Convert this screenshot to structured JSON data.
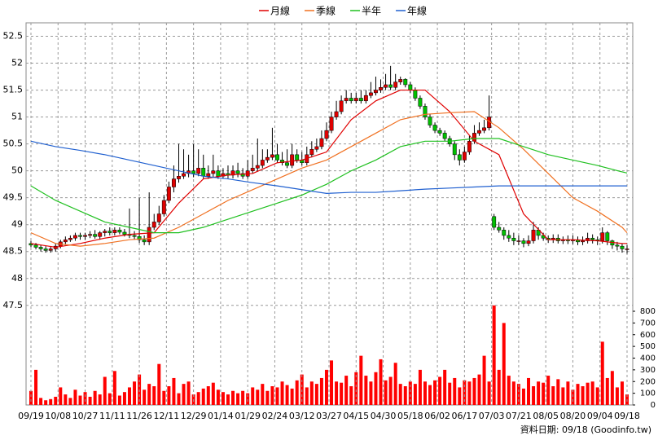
{
  "chart_data": [
    {
      "type": "candlestick",
      "source": "資料日期: 09/18 (Goodinfo.tw)",
      "xlim": [
        0,
        121
      ],
      "xticks": [
        {
          "value": 0,
          "label": "09/19"
        },
        {
          "value": 5.5,
          "label": "10/08"
        },
        {
          "value": 11,
          "label": "10/27"
        },
        {
          "value": 16.5,
          "label": "11/11"
        },
        {
          "value": 22,
          "label": "11/26"
        },
        {
          "value": 27.5,
          "label": "12/11"
        },
        {
          "value": 33,
          "label": "12/29"
        },
        {
          "value": 38.5,
          "label": "01/14"
        },
        {
          "value": 44,
          "label": "01/29"
        },
        {
          "value": 49.5,
          "label": "02/24"
        },
        {
          "value": 55,
          "label": "03/12"
        },
        {
          "value": 60.5,
          "label": "03/27"
        },
        {
          "value": 66,
          "label": "04/15"
        },
        {
          "value": 71.5,
          "label": "04/30"
        },
        {
          "value": 77,
          "label": "05/18"
        },
        {
          "value": 82.5,
          "label": "06/02"
        },
        {
          "value": 88,
          "label": "06/17"
        },
        {
          "value": 93.5,
          "label": "07/03"
        },
        {
          "value": 99,
          "label": "07/21"
        },
        {
          "value": 104.5,
          "label": "08/05"
        },
        {
          "value": 110,
          "label": "08/20"
        },
        {
          "value": 115.5,
          "label": "09/04"
        },
        {
          "value": 121,
          "label": "09/18"
        }
      ],
      "ylim": [
        45.65,
        52.75
      ],
      "yticks": [
        47.5,
        48,
        48.5,
        49,
        49.5,
        50,
        50.5,
        51,
        51.5,
        52,
        52.5
      ],
      "grid": true,
      "up_color": "#e00000",
      "down_color": "#00c000",
      "open": [
        48.65,
        48.62,
        48.58,
        48.55,
        48.52,
        48.55,
        48.6,
        48.68,
        48.72,
        48.75,
        48.8,
        48.78,
        48.8,
        48.82,
        48.78,
        48.85,
        48.88,
        48.85,
        48.9,
        48.86,
        48.82,
        48.8,
        48.78,
        48.72,
        48.68,
        48.95,
        49.05,
        49.2,
        49.45,
        49.7,
        49.85,
        49.9,
        49.95,
        50.0,
        49.95,
        50.05,
        49.9,
        49.95,
        50.0,
        49.9,
        49.95,
        49.92,
        50.0,
        49.95,
        49.9,
        50.0,
        50.05,
        50.1,
        50.2,
        50.25,
        50.3,
        50.2,
        50.15,
        50.1,
        50.3,
        50.2,
        50.15,
        50.3,
        50.4,
        50.45,
        50.6,
        50.75,
        51.0,
        51.1,
        51.3,
        51.35,
        51.3,
        51.35,
        51.3,
        51.4,
        51.45,
        51.5,
        51.55,
        51.6,
        51.55,
        51.65,
        51.7,
        51.6,
        51.5,
        51.35,
        51.2,
        51.0,
        50.85,
        50.75,
        50.7,
        50.6,
        50.5,
        50.3,
        50.2,
        50.35,
        50.55,
        50.7,
        50.75,
        50.8,
        49.15,
        48.95,
        48.9,
        48.8,
        48.75,
        48.7,
        48.7,
        48.65,
        48.7,
        48.9,
        48.8,
        48.75,
        48.72,
        48.75,
        48.7,
        48.72,
        48.7,
        48.72,
        48.68,
        48.7,
        48.75,
        48.72,
        48.7,
        48.85,
        48.7,
        48.62,
        48.6,
        48.55
      ],
      "high": [
        48.7,
        48.66,
        48.62,
        48.6,
        48.6,
        48.65,
        48.72,
        48.78,
        48.8,
        48.85,
        48.85,
        48.85,
        48.88,
        48.9,
        48.88,
        48.92,
        48.95,
        48.95,
        48.95,
        48.92,
        49.3,
        48.88,
        49.5,
        48.8,
        49.6,
        49.2,
        49.35,
        49.55,
        49.8,
        50.1,
        50.5,
        50.4,
        50.3,
        50.5,
        50.4,
        50.3,
        50.1,
        50.3,
        50.1,
        50.05,
        50.1,
        50.1,
        50.15,
        50.05,
        50.2,
        50.3,
        50.6,
        50.4,
        50.4,
        50.8,
        50.5,
        50.35,
        50.4,
        50.5,
        50.4,
        50.35,
        50.45,
        50.55,
        50.6,
        50.75,
        50.9,
        51.1,
        51.3,
        51.4,
        51.5,
        51.45,
        51.45,
        51.5,
        51.5,
        51.65,
        51.75,
        51.7,
        51.8,
        51.95,
        51.8,
        51.75,
        51.72,
        51.65,
        51.55,
        51.4,
        51.25,
        51.05,
        50.9,
        50.8,
        50.75,
        50.65,
        50.55,
        50.4,
        50.45,
        50.65,
        50.85,
        50.9,
        50.95,
        51.4,
        49.2,
        49.05,
        48.95,
        48.9,
        48.85,
        48.8,
        48.75,
        48.8,
        49.05,
        48.95,
        48.85,
        48.8,
        48.82,
        48.82,
        48.78,
        48.8,
        48.8,
        48.78,
        48.78,
        48.85,
        48.82,
        48.78,
        48.95,
        48.88,
        48.72,
        48.68,
        48.65,
        48.62
      ],
      "low": [
        48.58,
        48.54,
        48.5,
        48.48,
        48.48,
        48.5,
        48.56,
        48.64,
        48.68,
        48.7,
        48.72,
        48.72,
        48.75,
        48.74,
        48.72,
        48.78,
        48.8,
        48.8,
        48.82,
        48.78,
        48.75,
        48.72,
        48.66,
        48.62,
        48.62,
        48.9,
        49.0,
        49.15,
        49.4,
        49.6,
        49.78,
        49.85,
        49.88,
        49.88,
        49.9,
        49.85,
        49.85,
        49.88,
        49.85,
        49.85,
        49.86,
        49.86,
        49.88,
        49.85,
        49.85,
        49.95,
        50.0,
        50.05,
        50.15,
        50.2,
        50.15,
        50.1,
        50.05,
        50.05,
        50.15,
        50.1,
        50.1,
        50.25,
        50.35,
        50.4,
        50.55,
        50.7,
        50.95,
        51.05,
        51.25,
        51.25,
        51.25,
        51.25,
        51.25,
        51.35,
        51.4,
        51.45,
        51.5,
        51.5,
        51.5,
        51.6,
        51.55,
        51.45,
        51.3,
        51.15,
        50.95,
        50.8,
        50.7,
        50.65,
        50.55,
        50.45,
        50.2,
        50.1,
        50.15,
        50.3,
        50.5,
        50.65,
        50.7,
        50.75,
        48.9,
        48.85,
        48.72,
        48.68,
        48.62,
        48.62,
        48.58,
        48.6,
        48.65,
        48.72,
        48.7,
        48.66,
        48.66,
        48.65,
        48.64,
        48.64,
        48.64,
        48.62,
        48.62,
        48.65,
        48.65,
        48.62,
        48.65,
        48.62,
        48.55,
        48.52,
        48.48,
        48.46
      ],
      "close": [
        48.62,
        48.58,
        48.55,
        48.52,
        48.55,
        48.6,
        48.68,
        48.72,
        48.75,
        48.8,
        48.78,
        48.8,
        48.82,
        48.78,
        48.85,
        48.88,
        48.85,
        48.9,
        48.86,
        48.82,
        48.8,
        48.78,
        48.72,
        48.68,
        48.95,
        49.05,
        49.2,
        49.45,
        49.7,
        49.85,
        49.9,
        49.95,
        50.0,
        49.95,
        50.05,
        49.9,
        49.95,
        50.0,
        49.9,
        49.95,
        49.92,
        50.0,
        49.95,
        49.9,
        50.0,
        50.05,
        50.1,
        50.2,
        50.25,
        50.3,
        50.2,
        50.15,
        50.1,
        50.3,
        50.2,
        50.15,
        50.3,
        50.4,
        50.45,
        50.6,
        50.75,
        51.0,
        51.1,
        51.3,
        51.35,
        51.3,
        51.35,
        51.3,
        51.4,
        51.45,
        51.5,
        51.55,
        51.6,
        51.55,
        51.65,
        51.7,
        51.6,
        51.5,
        51.35,
        51.2,
        51.0,
        50.85,
        50.75,
        50.7,
        50.6,
        50.5,
        50.3,
        50.2,
        50.35,
        50.55,
        50.7,
        50.75,
        50.8,
        51.0,
        48.95,
        48.9,
        48.8,
        48.75,
        48.7,
        48.7,
        48.65,
        48.7,
        48.9,
        48.8,
        48.75,
        48.72,
        48.75,
        48.7,
        48.72,
        48.7,
        48.72,
        48.68,
        48.7,
        48.75,
        48.72,
        48.7,
        48.85,
        48.7,
        48.62,
        48.6,
        48.55,
        48.55
      ],
      "series": [
        {
          "name": "月線",
          "color": "#e00000",
          "x": [
            0,
            5,
            10,
            15,
            20,
            25,
            30,
            35,
            40,
            45,
            50,
            55,
            60,
            65,
            70,
            75,
            80,
            85,
            90,
            95,
            100,
            105,
            110,
            115,
            120,
            121
          ],
          "values": [
            48.65,
            48.58,
            48.65,
            48.75,
            48.82,
            48.85,
            49.4,
            49.85,
            49.92,
            49.95,
            50.15,
            50.2,
            50.35,
            50.95,
            51.3,
            51.5,
            51.5,
            51.1,
            50.55,
            50.3,
            49.2,
            48.72,
            48.72,
            48.7,
            48.65,
            48.65
          ]
        },
        {
          "name": "季線",
          "color": "#f07020",
          "x": [
            0,
            5,
            10,
            15,
            20,
            25,
            30,
            35,
            40,
            45,
            50,
            55,
            60,
            65,
            70,
            75,
            80,
            85,
            90,
            95,
            100,
            105,
            110,
            115,
            120,
            121
          ],
          "values": [
            48.85,
            48.65,
            48.6,
            48.65,
            48.72,
            48.75,
            48.95,
            49.2,
            49.45,
            49.65,
            49.85,
            50.05,
            50.2,
            50.45,
            50.7,
            50.95,
            51.05,
            51.08,
            51.1,
            50.8,
            50.4,
            49.95,
            49.5,
            49.25,
            48.95,
            48.85
          ]
        },
        {
          "name": "半年",
          "color": "#20c020",
          "x": [
            0,
            5,
            10,
            15,
            20,
            25,
            30,
            35,
            40,
            45,
            50,
            55,
            60,
            65,
            70,
            75,
            80,
            85,
            90,
            95,
            100,
            105,
            110,
            115,
            120,
            121
          ],
          "values": [
            49.72,
            49.45,
            49.25,
            49.05,
            48.95,
            48.85,
            48.85,
            48.95,
            49.1,
            49.25,
            49.4,
            49.55,
            49.75,
            50.0,
            50.2,
            50.45,
            50.55,
            50.55,
            50.6,
            50.6,
            50.45,
            50.3,
            50.2,
            50.1,
            49.98,
            49.96
          ]
        },
        {
          "name": "年線",
          "color": "#2060d0",
          "x": [
            0,
            5,
            10,
            15,
            20,
            25,
            30,
            35,
            40,
            45,
            50,
            55,
            60,
            65,
            70,
            75,
            80,
            85,
            90,
            95,
            100,
            105,
            110,
            115,
            120,
            121
          ],
          "values": [
            50.55,
            50.45,
            50.38,
            50.3,
            50.2,
            50.1,
            50.0,
            49.9,
            49.85,
            49.78,
            49.72,
            49.65,
            49.58,
            49.6,
            49.6,
            49.63,
            49.66,
            49.68,
            49.7,
            49.72,
            49.72,
            49.72,
            49.72,
            49.72,
            49.72,
            49.72
          ]
        }
      ]
    },
    {
      "type": "bar",
      "color": "#ff0000",
      "ylim": [
        0,
        800
      ],
      "yticks": [
        0,
        100,
        200,
        300,
        400,
        500,
        600,
        700,
        800
      ],
      "values": [
        120,
        300,
        60,
        40,
        50,
        70,
        150,
        90,
        60,
        130,
        80,
        110,
        70,
        120,
        90,
        240,
        100,
        290,
        80,
        110,
        150,
        200,
        260,
        130,
        180,
        160,
        350,
        120,
        160,
        230,
        100,
        180,
        200,
        90,
        110,
        140,
        160,
        190,
        130,
        110,
        90,
        120,
        100,
        120,
        100,
        150,
        130,
        180,
        120,
        160,
        150,
        200,
        170,
        140,
        210,
        260,
        150,
        200,
        180,
        230,
        300,
        380,
        200,
        190,
        250,
        160,
        280,
        420,
        250,
        200,
        280,
        390,
        210,
        240,
        360,
        180,
        160,
        200,
        180,
        300,
        200,
        170,
        210,
        240,
        300,
        190,
        230,
        150,
        210,
        200,
        230,
        260,
        420,
        200,
        850,
        300,
        700,
        250,
        200,
        180,
        140,
        230,
        160,
        200,
        190,
        250,
        160,
        220,
        150,
        200,
        130,
        180,
        160,
        190,
        200,
        150,
        540,
        230,
        290,
        150,
        200,
        90
      ]
    }
  ]
}
